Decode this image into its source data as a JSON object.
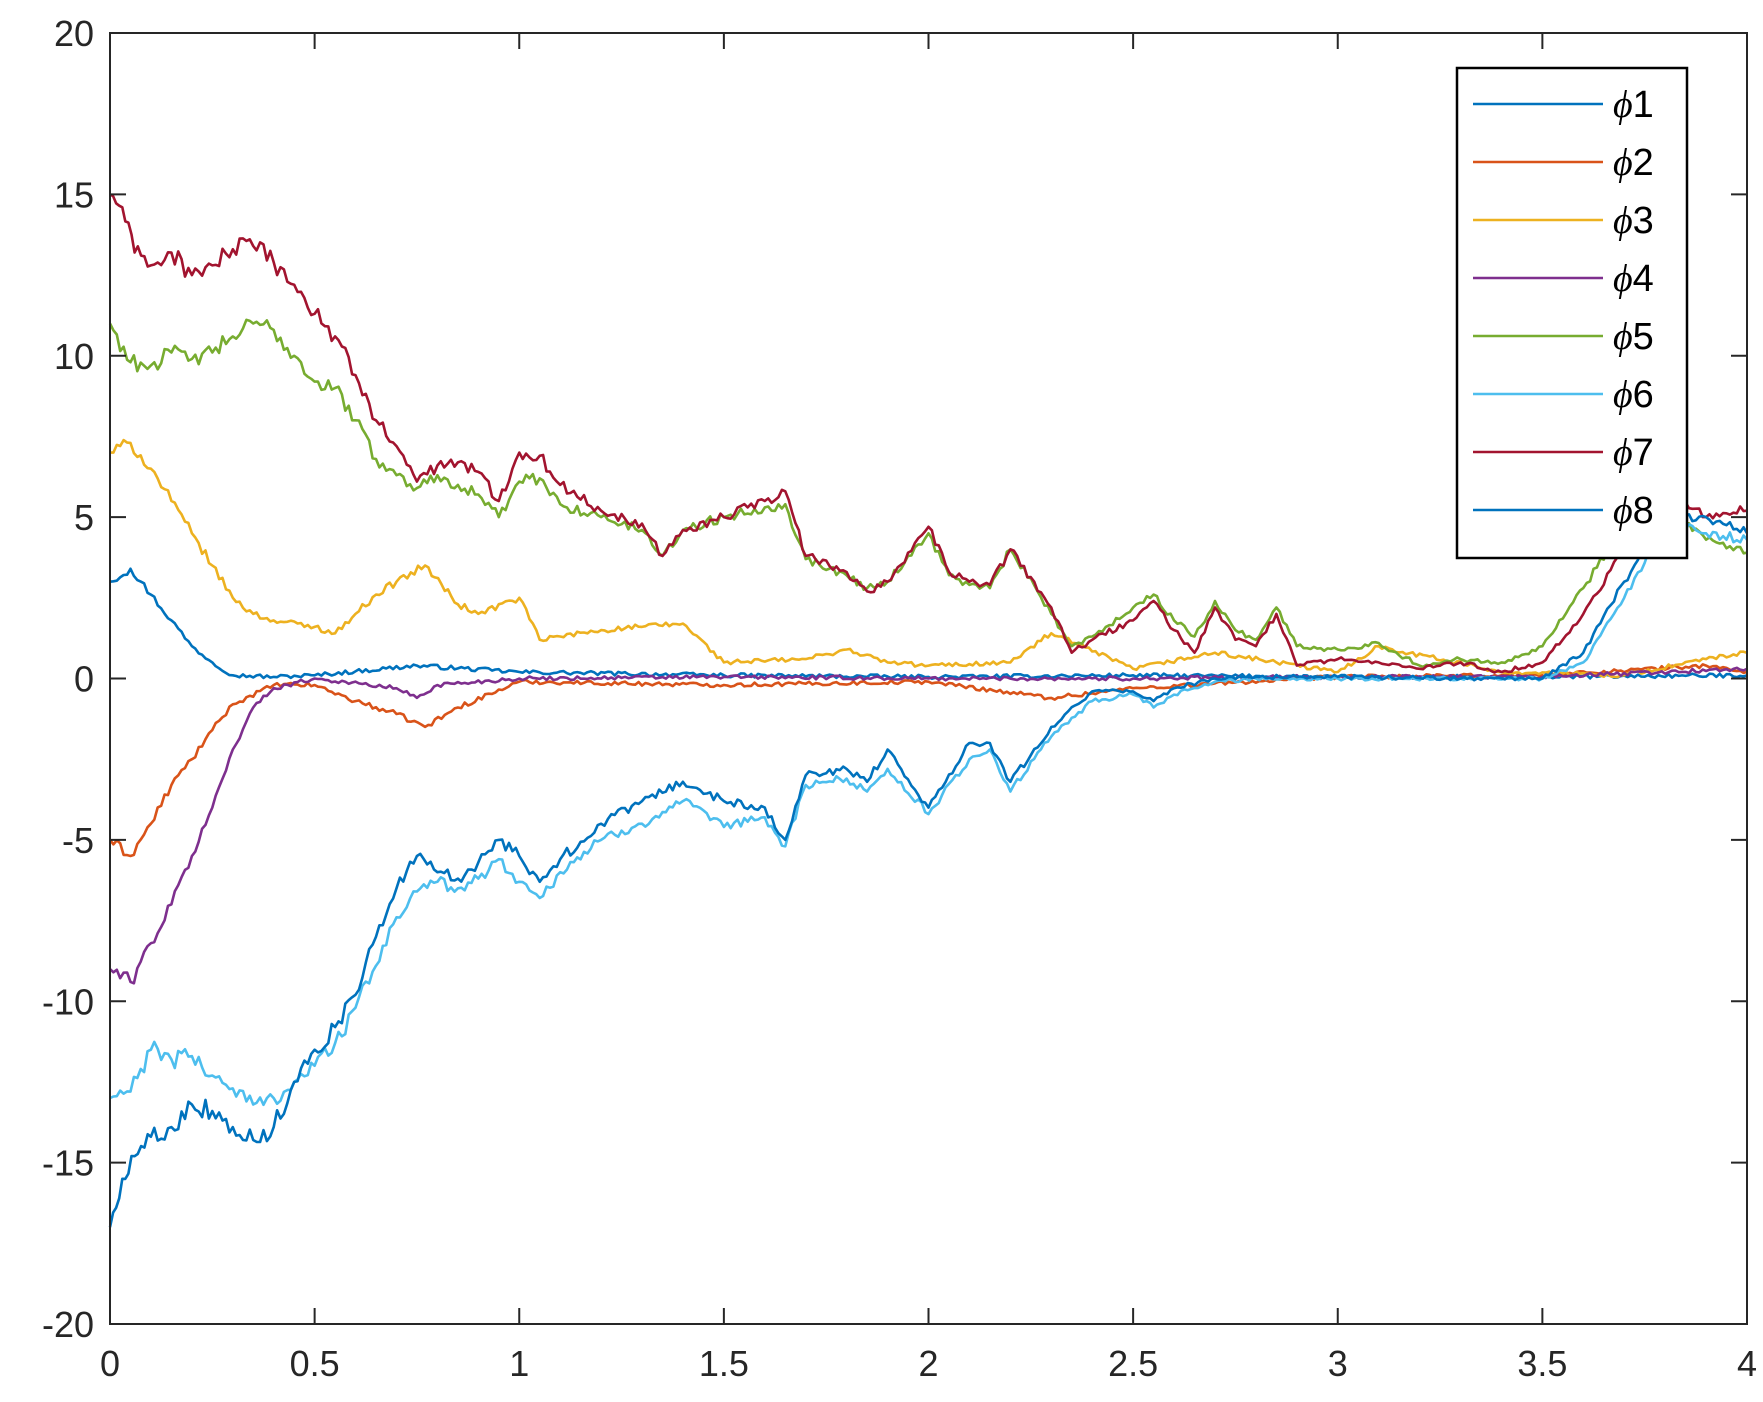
{
  "chart_data": {
    "type": "line",
    "title": "",
    "xlabel": "",
    "ylabel": "",
    "xlim": [
      0,
      4
    ],
    "ylim": [
      -20,
      20
    ],
    "xticks": [
      "0",
      "0.5",
      "1",
      "1.5",
      "2",
      "2.5",
      "3",
      "3.5",
      "4"
    ],
    "yticks": [
      "-20",
      "-15",
      "-10",
      "-5",
      "0",
      "5",
      "10",
      "15",
      "20"
    ],
    "grid": false,
    "legend_position": "top-right",
    "series": [
      {
        "name": "ϕ1",
        "color": "#0072BD",
        "x": [
          0,
          0.05,
          0.1,
          0.15,
          0.2,
          0.25,
          0.3,
          0.4,
          0.5,
          0.75,
          1.0,
          1.5,
          2.0,
          2.5,
          3.0,
          3.5,
          4.0
        ],
        "y": [
          3.0,
          3.4,
          2.6,
          1.8,
          1.0,
          0.5,
          0.1,
          0.05,
          0.1,
          0.4,
          0.2,
          0.1,
          0.05,
          0.1,
          0.05,
          0.05,
          0.1
        ]
      },
      {
        "name": "ϕ2",
        "color": "#D95319",
        "x": [
          0,
          0.05,
          0.1,
          0.15,
          0.2,
          0.25,
          0.3,
          0.4,
          0.5,
          0.6,
          0.7,
          0.77,
          0.85,
          1.0,
          1.5,
          2.0,
          2.3,
          2.5,
          3.0,
          3.5,
          3.9,
          4.0
        ],
        "y": [
          -5.0,
          -5.5,
          -4.5,
          -3.3,
          -2.5,
          -1.6,
          -0.8,
          -0.2,
          -0.2,
          -0.7,
          -1.1,
          -1.5,
          -0.9,
          -0.1,
          -0.2,
          -0.1,
          -0.6,
          -0.3,
          0.05,
          0.1,
          0.4,
          0.2
        ]
      },
      {
        "name": "ϕ3",
        "color": "#EDB120",
        "x": [
          0,
          0.05,
          0.1,
          0.15,
          0.2,
          0.25,
          0.3,
          0.35,
          0.4,
          0.5,
          0.55,
          0.6,
          0.65,
          0.7,
          0.77,
          0.85,
          0.9,
          1.0,
          1.05,
          1.2,
          1.3,
          1.4,
          1.5,
          1.7,
          1.8,
          1.9,
          2.0,
          2.2,
          2.3,
          2.5,
          2.7,
          3.0,
          3.1,
          3.4,
          3.7,
          3.9,
          4.0
        ],
        "y": [
          7.0,
          7.3,
          6.5,
          5.5,
          4.5,
          3.5,
          2.5,
          2.0,
          1.8,
          1.6,
          1.4,
          2.0,
          2.6,
          3.0,
          3.5,
          2.3,
          2.0,
          2.5,
          1.2,
          1.5,
          1.6,
          1.7,
          0.5,
          0.6,
          0.9,
          0.5,
          0.4,
          0.5,
          1.4,
          0.3,
          0.8,
          0.2,
          1.0,
          0.2,
          0.1,
          0.6,
          0.8
        ]
      },
      {
        "name": "ϕ4",
        "color": "#7E2F8E",
        "x": [
          0,
          0.05,
          0.1,
          0.15,
          0.2,
          0.25,
          0.3,
          0.35,
          0.4,
          0.5,
          0.7,
          0.75,
          0.8,
          1.0,
          1.5,
          2.0,
          2.5,
          3.0,
          3.5,
          4.0
        ],
        "y": [
          -9.0,
          -9.4,
          -8.2,
          -7.0,
          -5.5,
          -4.0,
          -2.2,
          -0.9,
          -0.3,
          0.0,
          -0.3,
          -0.6,
          -0.2,
          0.0,
          0.05,
          0.0,
          0.0,
          0.05,
          0.05,
          0.3
        ]
      },
      {
        "name": "ϕ5",
        "color": "#77AC30",
        "x": [
          0,
          0.05,
          0.1,
          0.15,
          0.2,
          0.25,
          0.3,
          0.35,
          0.4,
          0.45,
          0.5,
          0.55,
          0.6,
          0.65,
          0.7,
          0.75,
          0.8,
          0.85,
          0.9,
          0.95,
          1.0,
          1.05,
          1.1,
          1.2,
          1.3,
          1.35,
          1.4,
          1.5,
          1.6,
          1.65,
          1.7,
          1.8,
          1.85,
          1.9,
          2.0,
          2.05,
          2.1,
          2.15,
          2.2,
          2.3,
          2.35,
          2.4,
          2.5,
          2.55,
          2.6,
          2.65,
          2.7,
          2.75,
          2.8,
          2.85,
          2.9,
          3.0,
          3.1,
          3.2,
          3.3,
          3.4,
          3.5,
          3.6,
          3.7,
          3.75,
          3.8,
          3.9,
          4.0
        ],
        "y": [
          11.0,
          9.8,
          9.7,
          10.1,
          9.9,
          10.1,
          10.6,
          11.0,
          10.8,
          10.0,
          9.2,
          9.0,
          8.0,
          6.8,
          6.3,
          5.9,
          6.3,
          6.0,
          5.7,
          5.0,
          6.1,
          6.2,
          5.4,
          5.0,
          4.6,
          3.8,
          4.6,
          5.0,
          5.3,
          5.4,
          3.7,
          3.2,
          2.8,
          3.0,
          4.5,
          3.2,
          2.9,
          2.8,
          4.0,
          2.0,
          1.0,
          1.3,
          2.2,
          2.6,
          1.8,
          1.3,
          2.4,
          1.5,
          1.2,
          2.2,
          1.0,
          0.9,
          1.1,
          0.4,
          0.6,
          0.5,
          1.0,
          2.8,
          4.8,
          5.6,
          5.2,
          4.3,
          3.9
        ]
      },
      {
        "name": "ϕ6",
        "color": "#4DBEEE",
        "x": [
          0,
          0.05,
          0.1,
          0.15,
          0.2,
          0.25,
          0.3,
          0.35,
          0.4,
          0.45,
          0.5,
          0.55,
          0.6,
          0.65,
          0.7,
          0.75,
          0.8,
          0.85,
          0.9,
          0.95,
          1.0,
          1.05,
          1.1,
          1.2,
          1.3,
          1.4,
          1.5,
          1.6,
          1.65,
          1.7,
          1.8,
          1.85,
          1.9,
          2.0,
          2.1,
          2.15,
          2.2,
          2.3,
          2.4,
          2.5,
          2.55,
          2.6,
          2.7,
          2.8,
          3.0,
          3.3,
          3.5,
          3.6,
          3.7,
          3.8,
          3.9,
          4.0
        ],
        "y": [
          -13.0,
          -12.8,
          -11.5,
          -11.8,
          -11.7,
          -12.3,
          -12.7,
          -13.2,
          -13.0,
          -12.5,
          -12.0,
          -11.3,
          -10.2,
          -8.9,
          -7.4,
          -6.6,
          -6.3,
          -6.5,
          -6.2,
          -5.6,
          -6.3,
          -6.8,
          -6.0,
          -5.0,
          -4.5,
          -3.8,
          -4.6,
          -4.3,
          -5.2,
          -3.3,
          -3.1,
          -3.5,
          -2.8,
          -4.2,
          -2.5,
          -2.2,
          -3.5,
          -1.8,
          -0.7,
          -0.5,
          -0.9,
          -0.5,
          -0.1,
          0.0,
          0.0,
          0.0,
          0.0,
          0.5,
          2.5,
          4.8,
          4.5,
          4.3
        ]
      },
      {
        "name": "ϕ7",
        "color": "#A2142F",
        "x": [
          0,
          0.03,
          0.06,
          0.1,
          0.15,
          0.2,
          0.25,
          0.3,
          0.35,
          0.4,
          0.45,
          0.5,
          0.55,
          0.6,
          0.65,
          0.7,
          0.75,
          0.8,
          0.85,
          0.9,
          0.95,
          1.0,
          1.05,
          1.1,
          1.2,
          1.3,
          1.35,
          1.4,
          1.5,
          1.6,
          1.65,
          1.7,
          1.8,
          1.85,
          1.9,
          2.0,
          2.05,
          2.1,
          2.15,
          2.2,
          2.3,
          2.35,
          2.4,
          2.5,
          2.55,
          2.6,
          2.65,
          2.7,
          2.75,
          2.8,
          2.85,
          2.9,
          3.0,
          3.1,
          3.2,
          3.3,
          3.4,
          3.5,
          3.6,
          3.7,
          3.75,
          3.8,
          3.9,
          4.0
        ],
        "y": [
          15.0,
          14.6,
          13.2,
          12.8,
          13.2,
          12.5,
          12.8,
          13.3,
          13.4,
          12.9,
          12.2,
          11.3,
          10.6,
          9.4,
          8.0,
          7.2,
          6.1,
          6.6,
          6.7,
          6.4,
          5.5,
          7.0,
          6.9,
          6.0,
          5.2,
          4.8,
          3.8,
          4.6,
          5.0,
          5.5,
          5.8,
          3.8,
          3.3,
          2.7,
          3.0,
          4.7,
          3.3,
          3.0,
          2.9,
          4.0,
          2.2,
          0.8,
          1.2,
          1.8,
          2.4,
          1.5,
          0.8,
          2.2,
          1.2,
          1.0,
          2.0,
          0.4,
          0.6,
          0.5,
          0.3,
          0.5,
          0.2,
          0.5,
          2.0,
          4.0,
          5.4,
          5.7,
          5.0,
          5.2
        ]
      },
      {
        "name": "ϕ8",
        "color": "#0072BD",
        "x": [
          0,
          0.03,
          0.06,
          0.1,
          0.15,
          0.2,
          0.25,
          0.3,
          0.35,
          0.4,
          0.45,
          0.5,
          0.55,
          0.6,
          0.65,
          0.7,
          0.75,
          0.8,
          0.85,
          0.9,
          0.95,
          1.0,
          1.05,
          1.1,
          1.2,
          1.3,
          1.4,
          1.5,
          1.6,
          1.65,
          1.7,
          1.8,
          1.85,
          1.9,
          2.0,
          2.1,
          2.15,
          2.2,
          2.3,
          2.4,
          2.5,
          2.55,
          2.6,
          2.7,
          2.8,
          3.0,
          3.3,
          3.5,
          3.6,
          3.7,
          3.8,
          3.9,
          4.0
        ],
        "y": [
          -17.0,
          -15.5,
          -14.8,
          -14.2,
          -13.9,
          -13.2,
          -13.4,
          -13.9,
          -14.3,
          -13.9,
          -12.5,
          -11.5,
          -10.8,
          -9.8,
          -8.0,
          -6.5,
          -5.5,
          -6.0,
          -6.2,
          -5.7,
          -5.0,
          -5.5,
          -6.3,
          -5.6,
          -4.5,
          -3.8,
          -3.2,
          -3.8,
          -4.0,
          -5.0,
          -3.0,
          -2.8,
          -3.2,
          -2.2,
          -4.0,
          -2.0,
          -2.0,
          -3.2,
          -1.5,
          -0.4,
          -0.4,
          -0.7,
          -0.3,
          0.0,
          0.05,
          0.05,
          0.0,
          0.0,
          0.8,
          3.0,
          5.0,
          5.0,
          4.5
        ]
      }
    ]
  }
}
